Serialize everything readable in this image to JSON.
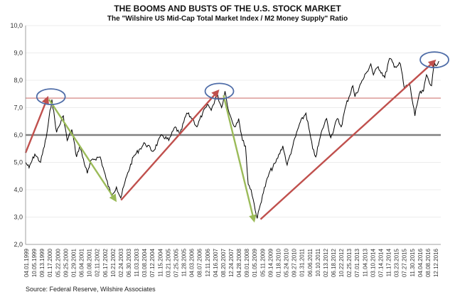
{
  "chart_data": {
    "type": "line",
    "title": "THE BOOMS AND BUSTS OF THE U.S. STOCK MARKET",
    "subtitle": "The \"Wilshire US Mid-Cap Total Market Index / M2 Money Supply\" Ratio",
    "source": "Source: Federal Reserve, Wilshire Associates",
    "ylim": [
      2,
      10
    ],
    "yticks": [
      "2,0",
      "3,0",
      "4,0",
      "5,0",
      "6,0",
      "7,0",
      "8,0",
      "9,0",
      "10,0"
    ],
    "xticks": [
      "04.01.1999",
      "10.05.1999",
      "09.13.1999",
      "01.17.2000",
      "05.22.2000",
      "09.25.2000",
      "01.29.2001",
      "06.04.2001",
      "10.08.2001",
      "02.11.2002",
      "06.17.2002",
      "10.21.2002",
      "02.24.2003",
      "06.30.2003",
      "11.03.2003",
      "03.08.2004",
      "07.12.2004",
      "11.15.2004",
      "03.21.2005",
      "07.25.2005",
      "11.28.2005",
      "04.03.2006",
      "08.07.2006",
      "12.11.2006",
      "04.16.2007",
      "08.20.2007",
      "12.24.2007",
      "04.28.2008",
      "09.01.2008",
      "01.05.2009",
      "05.11.2009",
      "09.14.2009",
      "01.18.2010",
      "05.24.2010",
      "09.27.2010",
      "01.31.2011",
      "06.06.2011",
      "10.10.2011",
      "02.13.2012",
      "06.18.2012",
      "10.22.2012",
      "02.25.2013",
      "07.01.2013",
      "11.04.2013",
      "03.10.2014",
      "07.14.2014",
      "11.17.2014",
      "03.23.2015",
      "07.27.2015",
      "11.30.2015",
      "04.04.2016",
      "08.08.2016",
      "12.12.2016"
    ],
    "reference_lines": [
      {
        "y": 6.0,
        "color": "#808080"
      },
      {
        "y": 7.35,
        "color": "#c0504d"
      }
    ],
    "series": [
      {
        "color": "#000000",
        "x": [
          "1999-01-04",
          "1999-03-01",
          "1999-06-01",
          "1999-09-01",
          "1999-12-01",
          "2000-03-01",
          "2000-05-15",
          "2000-09-01",
          "2000-11-01",
          "2001-01-15",
          "2001-04-01",
          "2001-05-20",
          "2001-09-20",
          "2001-12-01",
          "2002-04-15",
          "2002-07-20",
          "2002-10-09",
          "2003-01-01",
          "2003-03-11",
          "2003-06-15",
          "2003-10-01",
          "2004-01-15",
          "2004-04-01",
          "2004-08-10",
          "2004-12-31",
          "2005-04-20",
          "2005-08-01",
          "2005-10-15",
          "2006-02-01",
          "2006-05-05",
          "2006-07-15",
          "2006-10-15",
          "2007-01-15",
          "2007-03-01",
          "2007-06-01",
          "2007-08-15",
          "2007-10-09",
          "2007-12-15",
          "2008-03-10",
          "2008-05-15",
          "2008-07-15",
          "2008-09-01",
          "2008-10-15",
          "2008-12-01",
          "2009-03-09",
          "2009-06-01",
          "2009-09-15",
          "2009-12-31",
          "2010-04-23",
          "2010-07-02",
          "2010-10-01",
          "2011-01-15",
          "2011-04-29",
          "2011-08-15",
          "2011-10-03",
          "2012-01-15",
          "2012-03-26",
          "2012-06-01",
          "2012-09-14",
          "2012-11-15",
          "2013-02-01",
          "2013-05-21",
          "2013-06-24",
          "2013-09-30",
          "2013-12-31",
          "2014-03-05",
          "2014-04-15",
          "2014-07-01",
          "2014-10-15",
          "2014-12-31",
          "2015-03-31",
          "2015-06-23",
          "2015-08-25",
          "2015-11-15",
          "2016-02-11",
          "2016-04-20",
          "2016-06-27",
          "2016-08-15",
          "2016-11-04",
          "2016-12-09",
          "2017-03-01"
        ],
        "values": [
          5.0,
          4.8,
          5.3,
          5.0,
          5.9,
          7.3,
          6.1,
          6.7,
          5.8,
          6.2,
          5.2,
          5.6,
          4.6,
          5.1,
          5.2,
          4.4,
          3.8,
          4.1,
          3.7,
          4.5,
          5.2,
          5.5,
          5.7,
          5.4,
          6.0,
          5.8,
          6.3,
          6.0,
          6.8,
          6.6,
          6.3,
          6.8,
          7.1,
          6.9,
          7.5,
          7.0,
          7.6,
          6.8,
          6.3,
          6.6,
          5.8,
          5.6,
          4.2,
          4.0,
          2.95,
          3.8,
          4.6,
          5.0,
          5.6,
          4.9,
          5.6,
          6.4,
          6.8,
          5.5,
          5.2,
          6.2,
          6.6,
          5.9,
          6.6,
          6.3,
          7.1,
          7.8,
          7.4,
          7.9,
          8.3,
          8.6,
          8.2,
          8.5,
          8.1,
          8.8,
          8.5,
          8.6,
          7.7,
          7.9,
          6.7,
          7.5,
          7.6,
          8.2,
          7.8,
          8.5,
          8.7
        ]
      }
    ],
    "annotations": {
      "rise_arrows": [
        {
          "from": [
            "1999-01-04",
            5.35
          ],
          "to": [
            "1999-12-20",
            7.35
          ]
        },
        {
          "from": [
            "2003-03-15",
            3.62
          ],
          "to": [
            "2007-06-15",
            7.6
          ]
        },
        {
          "from": [
            "2009-05-01",
            2.92
          ],
          "to": [
            "2016-12-20",
            8.7
          ]
        }
      ],
      "fall_arrows": [
        {
          "from": [
            "2000-01-15",
            7.3
          ],
          "to": [
            "2002-12-15",
            3.62
          ]
        },
        {
          "from": [
            "2007-09-15",
            7.45
          ],
          "to": [
            "2009-01-15",
            2.88
          ]
        }
      ],
      "circles": [
        {
          "at": [
            "2000-02-15",
            7.4
          ]
        },
        {
          "at": [
            "2007-07-10",
            7.6
          ]
        },
        {
          "at": [
            "2016-12-20",
            8.75
          ]
        }
      ],
      "colors": {
        "rise": "#c0504d",
        "fall": "#9bbb59",
        "circle": "#4f6da8"
      }
    }
  }
}
